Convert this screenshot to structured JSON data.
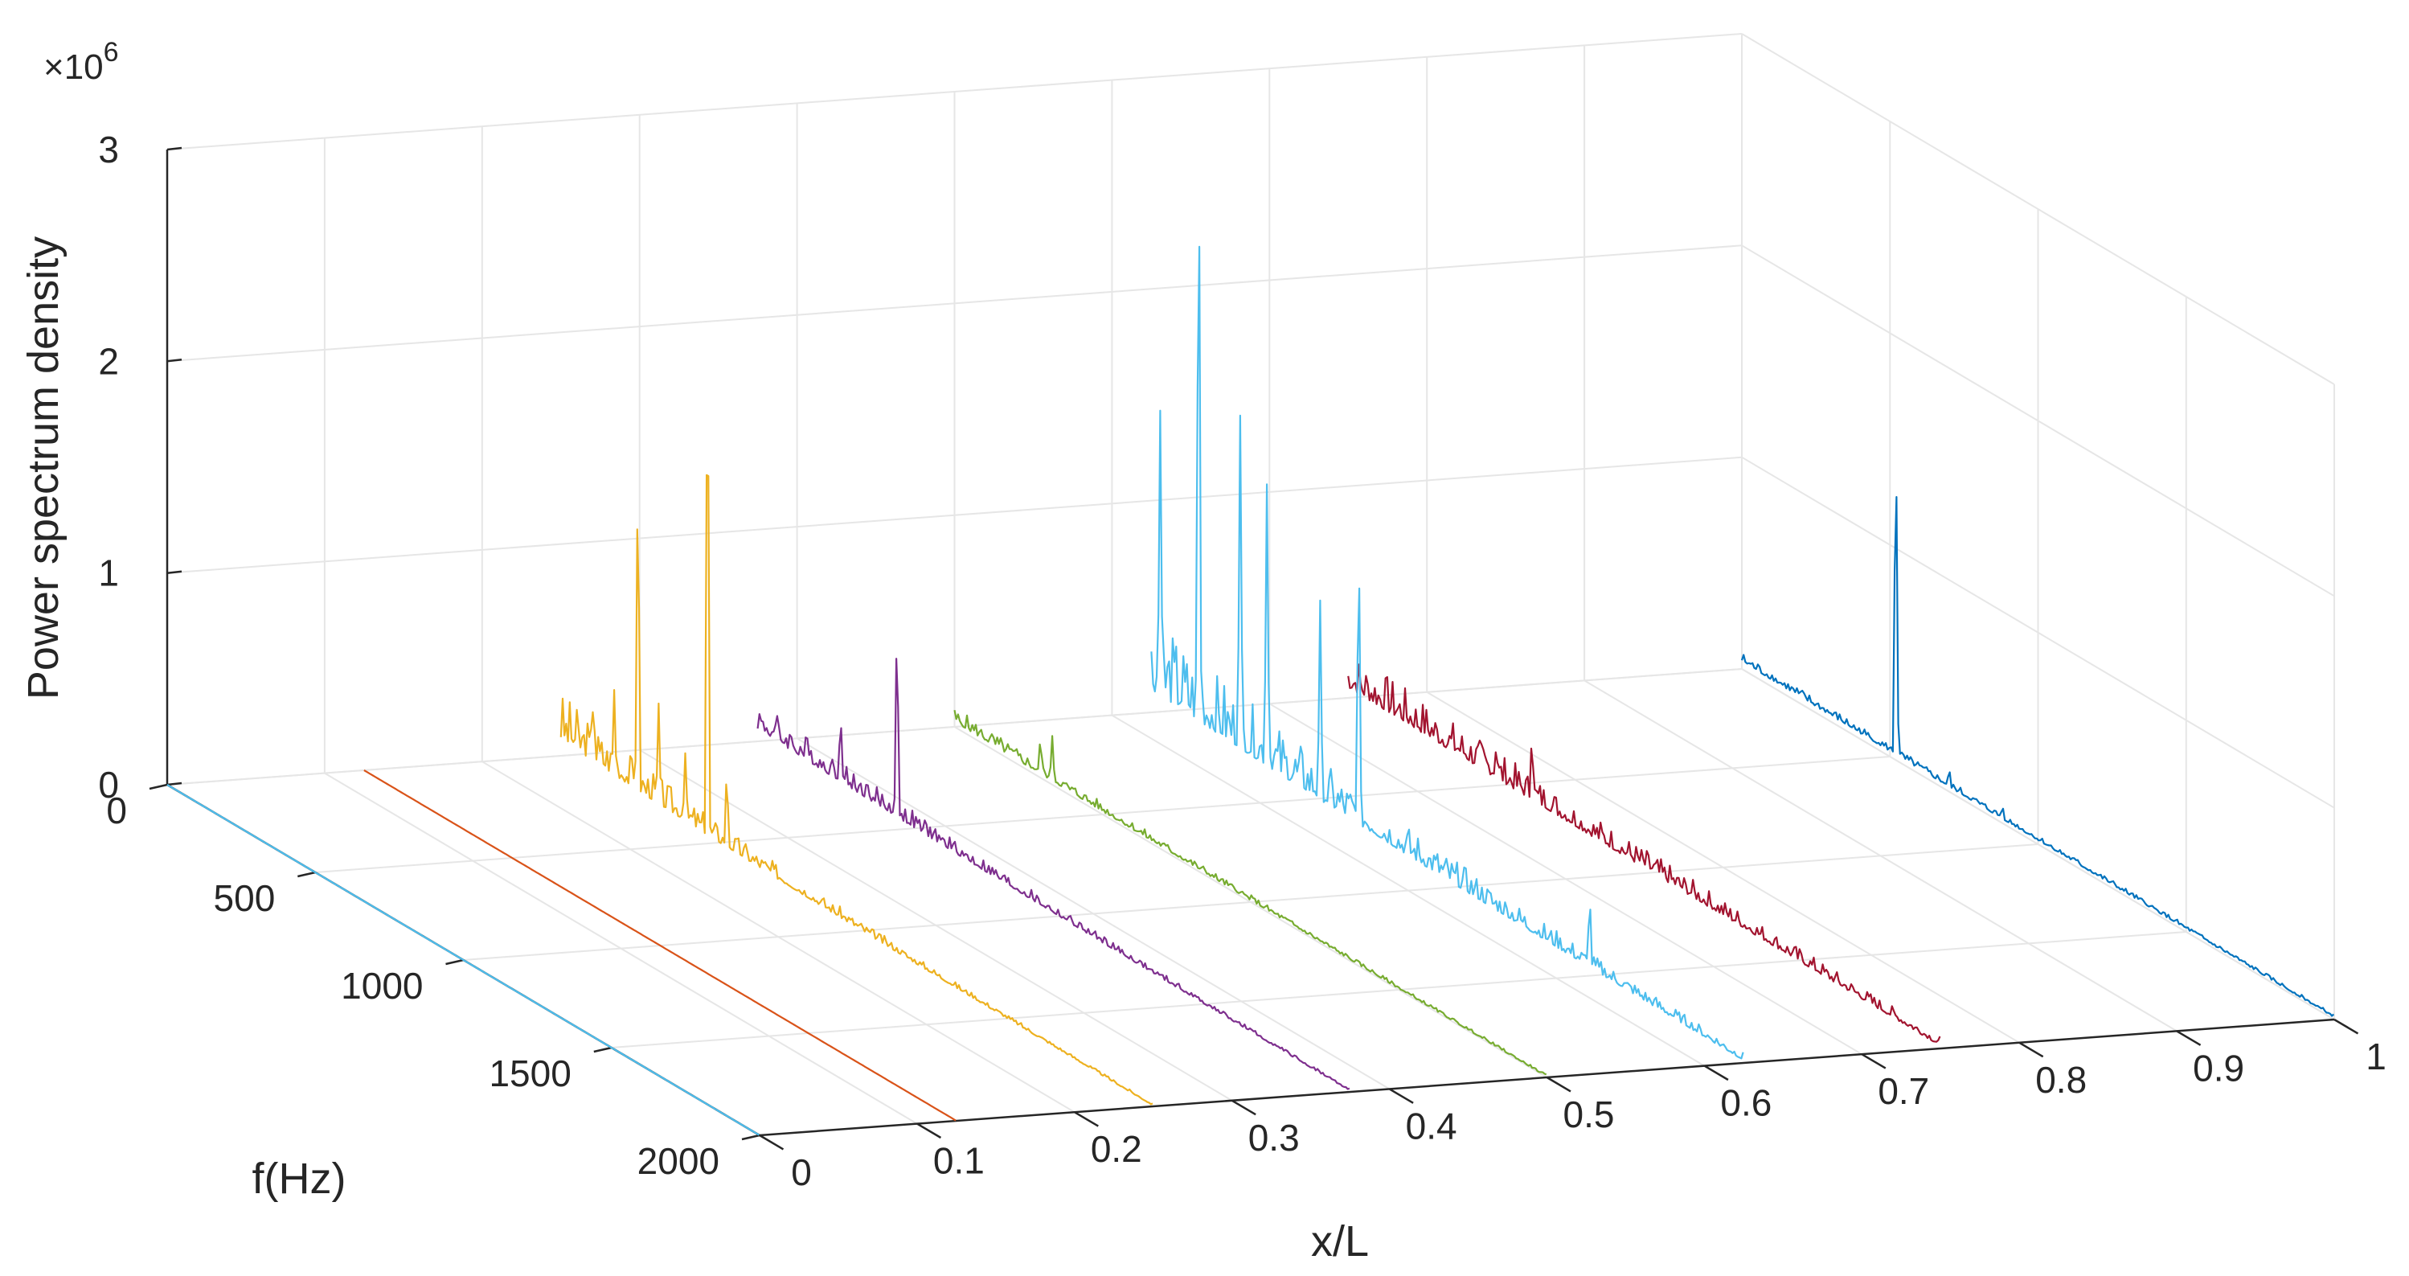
{
  "chart_data": {
    "type": "line",
    "projection": "3d waterfall",
    "xlabel": "x/L",
    "ylabel": "f(Hz)",
    "zlabel": "Power spectrum density",
    "z_exponent_label": "×10",
    "z_exponent_power": "6",
    "xlim": [
      0,
      1
    ],
    "ylim": [
      0,
      2000
    ],
    "zlim": [
      0,
      3000000
    ],
    "x_ticks": [
      "0",
      "0.1",
      "0.2",
      "0.3",
      "0.4",
      "0.5",
      "0.6",
      "0.7",
      "0.8",
      "0.9",
      "1"
    ],
    "x_tick_values": [
      0,
      0.1,
      0.2,
      0.3,
      0.4,
      0.5,
      0.6,
      0.7,
      0.8,
      0.9,
      1
    ],
    "y_ticks": [
      "0",
      "500",
      "1000",
      "1500",
      "2000"
    ],
    "y_tick_values": [
      0,
      500,
      1000,
      1500,
      2000
    ],
    "z_ticks": [
      "0",
      "1",
      "2",
      "3"
    ],
    "z_tick_values": [
      0,
      1000000,
      2000000,
      3000000
    ],
    "grid": true,
    "series": [
      {
        "x": 0.0,
        "color": "#4dbeee",
        "base": 0,
        "noise": 0,
        "decay": 0,
        "start_f": 0,
        "seed": 1,
        "peaks": []
      },
      {
        "x": 0.125,
        "color": "#d95319",
        "base": 0,
        "noise": 0,
        "decay": 0,
        "start_f": 0,
        "seed": 2,
        "peaks": []
      },
      {
        "x": 0.25,
        "color": "#edb120",
        "base": 80000,
        "noise": 230000,
        "decay": 0.0016,
        "start_f": 0,
        "seed": 3,
        "peaks": [
          [
            110,
            380000
          ],
          [
            180,
            460000
          ],
          [
            260,
            1650000
          ],
          [
            330,
            520000
          ],
          [
            420,
            360000
          ],
          [
            495,
            2600000
          ],
          [
            560,
            420000
          ]
        ]
      },
      {
        "x": 0.375,
        "color": "#7e2f8e",
        "base": 60000,
        "noise": 150000,
        "decay": 0.0013,
        "start_f": 0,
        "seed": 4,
        "peaks": [
          [
            280,
            380000
          ],
          [
            470,
            1000000
          ]
        ]
      },
      {
        "x": 0.5,
        "color": "#77ac30",
        "base": 25000,
        "noise": 70000,
        "decay": 0.001,
        "start_f": 0,
        "seed": 5,
        "peaks": [
          [
            290,
            200000
          ],
          [
            330,
            230000
          ]
        ]
      },
      {
        "x": 0.625,
        "color": "#4dbeee",
        "base": 110000,
        "noise": 360000,
        "decay": 0.0011,
        "start_f": 0,
        "seed": 6,
        "peaks": [
          [
            30,
            1450000
          ],
          [
            160,
            3000000
          ],
          [
            300,
            1650000
          ],
          [
            390,
            1400000
          ],
          [
            570,
            1000000
          ],
          [
            700,
            1500000
          ],
          [
            1480,
            380000
          ]
        ]
      },
      {
        "x": 0.75,
        "color": "#a2142f",
        "base": 50000,
        "noise": 190000,
        "decay": 0.0007,
        "start_f": 0,
        "seed": 7,
        "peaks": [
          [
            500,
            200000
          ],
          [
            620,
            350000
          ]
        ]
      },
      {
        "x": 1.0,
        "color": "#0072bd",
        "base": 35000,
        "noise": 45000,
        "decay": 0.0006,
        "start_f": 0,
        "seed": 8,
        "peaks": [
          [
            520,
            1600000
          ],
          [
            700,
            120000
          ],
          [
            880,
            90000
          ]
        ]
      }
    ]
  }
}
